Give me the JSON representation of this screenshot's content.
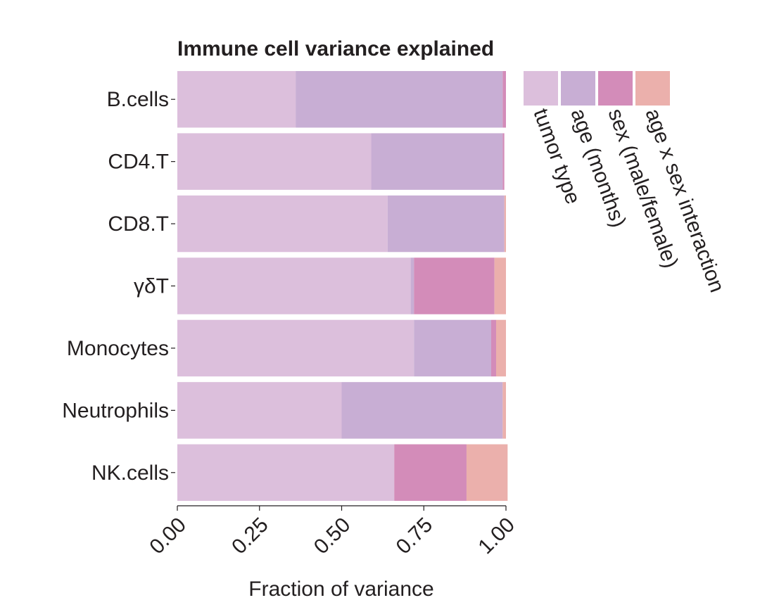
{
  "chart_data": {
    "type": "bar",
    "orientation": "horizontal",
    "stacked": true,
    "title": "Immune cell variance explained",
    "xlabel": "Fraction of variance",
    "ylabel": "",
    "xlim": [
      0,
      1
    ],
    "x_ticks": [
      "0.00",
      "0.25",
      "0.50",
      "0.75",
      "1.00"
    ],
    "grid": false,
    "legend_position": "right",
    "categories": [
      "B.cells",
      "CD4.T",
      "CD8.T",
      "γδT",
      "Monocytes",
      "Neutrophils",
      "NK.cells"
    ],
    "series": [
      {
        "name": "tumor type",
        "color": "#dcbfdc",
        "values": [
          0.36,
          0.59,
          0.64,
          0.71,
          0.72,
          0.5,
          0.66
        ]
      },
      {
        "name": "age (months)",
        "color": "#c8aed4",
        "values": [
          0.63,
          0.4,
          0.355,
          0.01,
          0.235,
          0.49,
          0.0
        ]
      },
      {
        "name": "sex (male/female)",
        "color": "#d38cb9",
        "values": [
          0.01,
          0.005,
          0.0,
          0.245,
          0.015,
          0.0,
          0.22
        ]
      },
      {
        "name": "age x sex interaction",
        "color": "#ebb0ac",
        "values": [
          0.0,
          0.0,
          0.005,
          0.035,
          0.03,
          0.01,
          0.125
        ]
      }
    ]
  }
}
